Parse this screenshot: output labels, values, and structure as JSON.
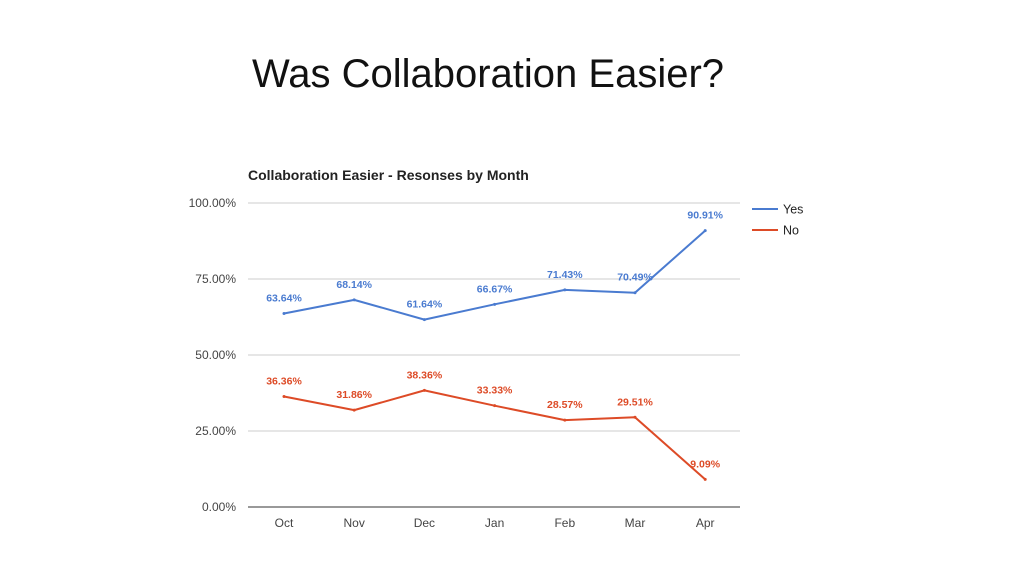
{
  "slide": {
    "title": "Was Collaboration Easier?"
  },
  "chart_data": {
    "type": "line",
    "title": "Collaboration Easier - Resonses by Month",
    "xlabel": "",
    "ylabel": "",
    "categories": [
      "Oct",
      "Nov",
      "Dec",
      "Jan",
      "Feb",
      "Mar",
      "Apr"
    ],
    "ylim": [
      0,
      100
    ],
    "y_ticks": [
      {
        "value": 0,
        "label": "0.00%"
      },
      {
        "value": 25,
        "label": "25.00%"
      },
      {
        "value": 50,
        "label": "50.00%"
      },
      {
        "value": 75,
        "label": "75.00%"
      },
      {
        "value": 100,
        "label": "100.00%"
      }
    ],
    "grid": true,
    "legend_position": "right",
    "series": [
      {
        "name": "Yes",
        "color": "#4a7bd0",
        "values": [
          63.64,
          68.14,
          61.64,
          66.67,
          71.43,
          70.49,
          90.91
        ],
        "labels": [
          "63.64%",
          "68.14%",
          "61.64%",
          "66.67%",
          "71.43%",
          "70.49%",
          "90.91%"
        ]
      },
      {
        "name": "No",
        "color": "#dd4b27",
        "values": [
          36.36,
          31.86,
          38.36,
          33.33,
          28.57,
          29.51,
          9.09
        ],
        "labels": [
          "36.36%",
          "31.86%",
          "38.36%",
          "33.33%",
          "28.57%",
          "29.51%",
          "9.09%"
        ]
      }
    ]
  }
}
